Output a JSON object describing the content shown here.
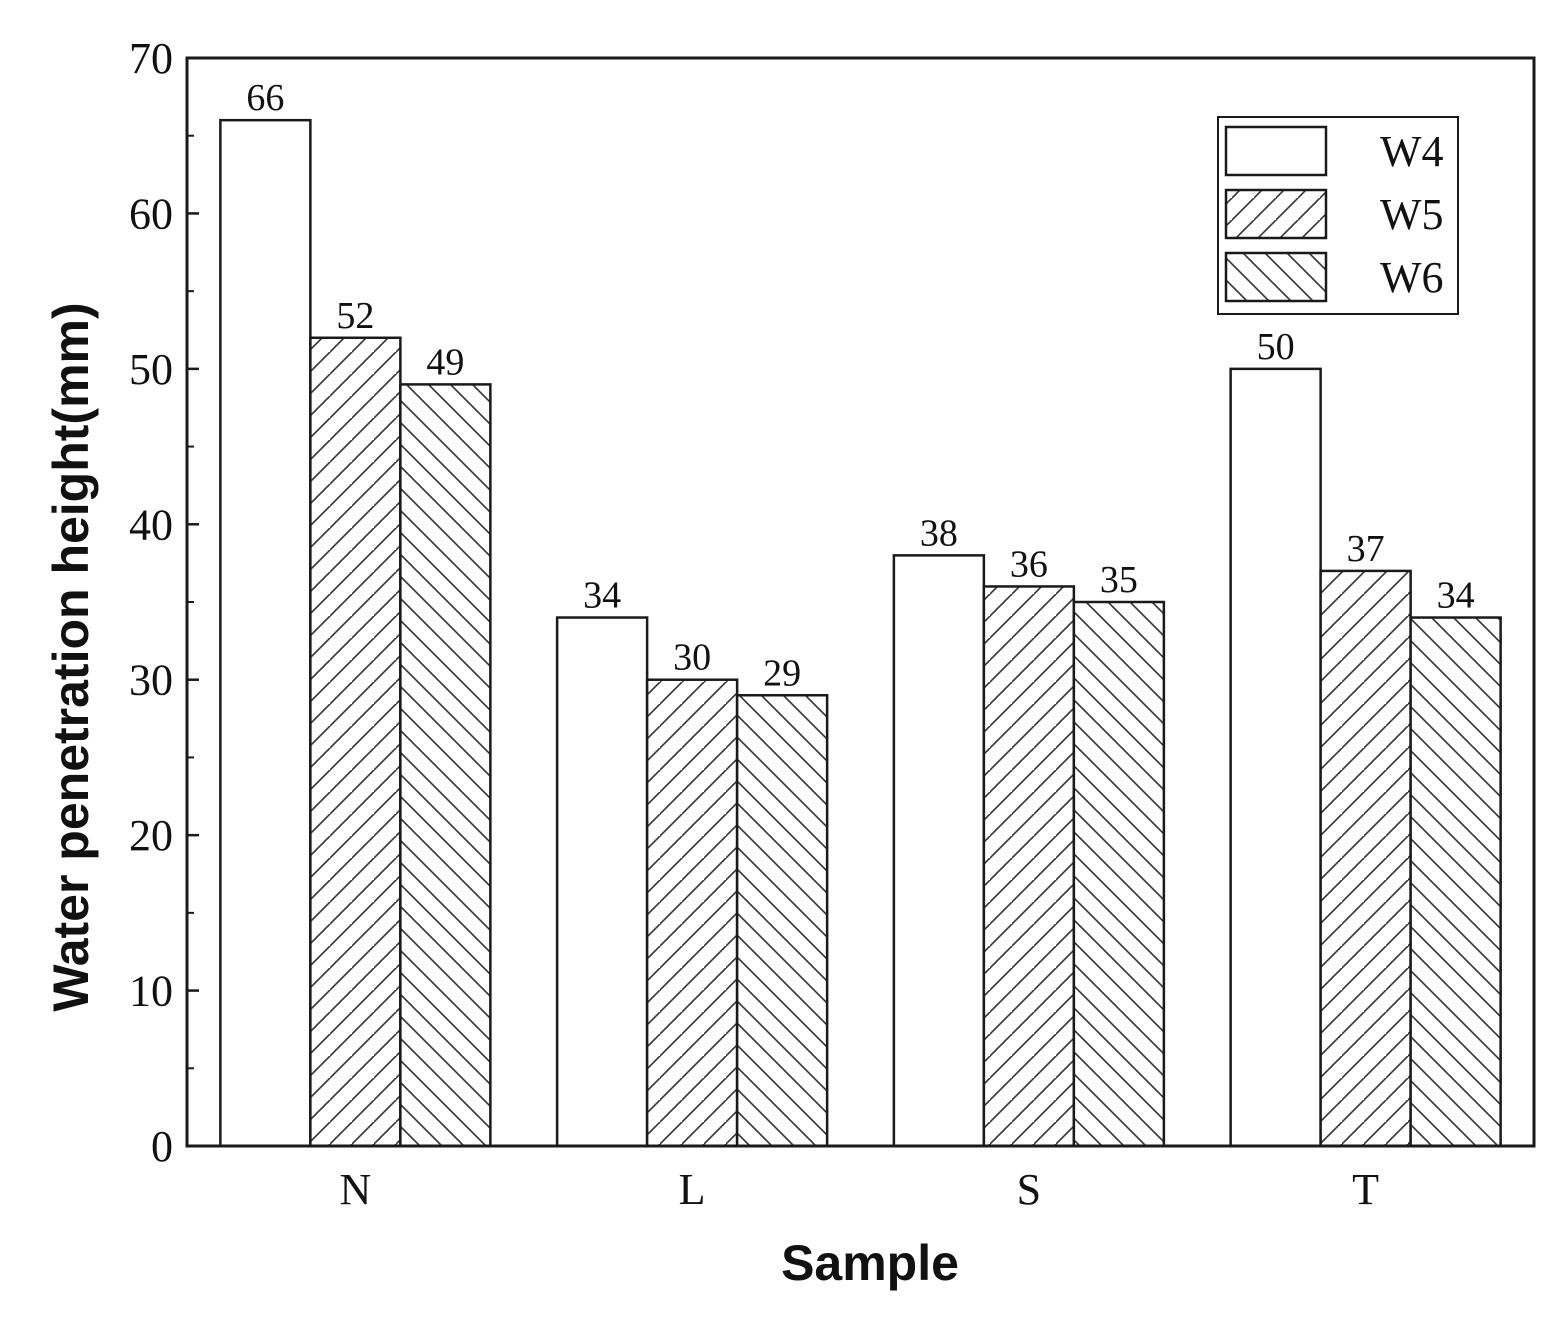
{
  "chart_data": {
    "type": "bar",
    "title": "",
    "xlabel": "Sample",
    "ylabel": "Water penetration height(mm)",
    "categories": [
      "N",
      "L",
      "S",
      "T"
    ],
    "ylim": [
      0,
      70
    ],
    "yticks": [
      0,
      10,
      20,
      30,
      40,
      50,
      60,
      70
    ],
    "grid": false,
    "legend_position": "top-right",
    "series": [
      {
        "name": "W4",
        "values": [
          66,
          34,
          38,
          50
        ],
        "pattern": "none"
      },
      {
        "name": "W5",
        "values": [
          52,
          30,
          36,
          37
        ],
        "pattern": "forward-hatch"
      },
      {
        "name": "W6",
        "values": [
          49,
          29,
          35,
          34
        ],
        "pattern": "back-hatch"
      }
    ],
    "colors": {
      "bar_fill": "#ffffff",
      "stroke": "#1a1a1a"
    }
  }
}
